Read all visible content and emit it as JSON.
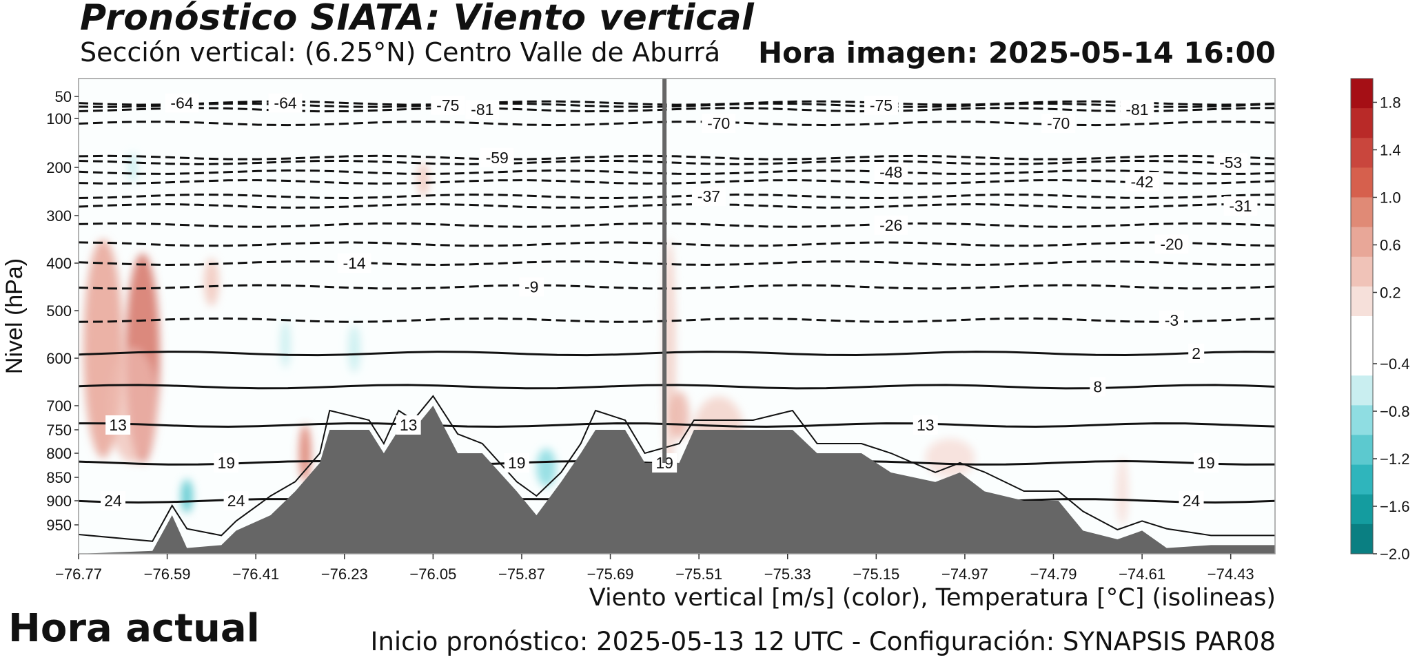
{
  "header": {
    "title": "Pronóstico SIATA: Viento vertical",
    "subtitle": "Sección vertical: (6.25°N) Centro Valle de Aburrá",
    "hora_imagen": "Hora imagen: 2025-05-14 16:00"
  },
  "footer": {
    "caption": "Viento vertical [m/s] (color), Temperatura [°C] (isolineas)",
    "inicio": "Inicio pronóstico: 2025-05-13 12 UTC - Configuración: SYNAPSIS PAR08",
    "hora_actual": "Hora actual"
  },
  "chart_data": {
    "type": "heatmap",
    "ylabel": "Nivel (hPa)",
    "y_scale": "pressure (inverted)",
    "xlim": [
      -76.77,
      -74.34
    ],
    "ylim": [
      1000,
      20
    ],
    "x_ticks": [
      -76.77,
      -76.59,
      -76.41,
      -76.23,
      -76.05,
      -75.87,
      -75.69,
      -75.51,
      -75.33,
      -75.15,
      -74.97,
      -74.79,
      -74.61,
      -74.43
    ],
    "y_ticks": [
      50,
      100,
      200,
      300,
      400,
      500,
      600,
      700,
      750,
      800,
      850,
      900,
      950
    ],
    "grid": false,
    "colorbar": {
      "ticks": [
        1.8,
        1.4,
        1.0,
        0.6,
        0.2,
        -0.4,
        -0.8,
        -1.2,
        -1.6,
        -2.0
      ],
      "range": [
        -2.0,
        2.0
      ],
      "colors_top_to_bottom": [
        "#a50f15",
        "#b92a28",
        "#c9463d",
        "#d6604d",
        "#e08a76",
        "#e8a798",
        "#f0c3b8",
        "#f6e0da",
        "#ffffff",
        "#ffffff",
        "#c9eef0",
        "#8fdde2",
        "#5cc9cf",
        "#2fb5bc",
        "#149c9f",
        "#0a7f82"
      ]
    },
    "current_longitude": -75.58,
    "isotherms": [
      {
        "label": "-64",
        "p": 65
      },
      {
        "label": "-75",
        "p": 70
      },
      {
        "label": "-81",
        "p": 80
      },
      {
        "label": "-70",
        "p": 110
      },
      {
        "label": "-59",
        "p": 180
      },
      {
        "label": "-53",
        "p": 190
      },
      {
        "label": "-48",
        "p": 210
      },
      {
        "label": "-42",
        "p": 230
      },
      {
        "label": "-37",
        "p": 260
      },
      {
        "label": "-31",
        "p": 280
      },
      {
        "label": "-26",
        "p": 320
      },
      {
        "label": "-20",
        "p": 360
      },
      {
        "label": "-14",
        "p": 400
      },
      {
        "label": "-9",
        "p": 450
      },
      {
        "label": "-3",
        "p": 520
      },
      {
        "label": "2",
        "p": 590
      },
      {
        "label": "8",
        "p": 660
      },
      {
        "label": "13",
        "p": 740
      },
      {
        "label": "19",
        "p": 820
      },
      {
        "label": "24",
        "p": 900
      }
    ],
    "terrain_profile_hPa": [
      [
        -76.77,
        1000
      ],
      [
        -76.62,
        995
      ],
      [
        -76.58,
        930
      ],
      [
        -76.55,
        990
      ],
      [
        -76.48,
        985
      ],
      [
        -76.45,
        960
      ],
      [
        -76.38,
        930
      ],
      [
        -76.33,
        880
      ],
      [
        -76.28,
        820
      ],
      [
        -76.26,
        750
      ],
      [
        -76.18,
        750
      ],
      [
        -76.15,
        800
      ],
      [
        -76.12,
        750
      ],
      [
        -76.09,
        750
      ],
      [
        -76.05,
        700
      ],
      [
        -76.0,
        800
      ],
      [
        -75.95,
        800
      ],
      [
        -75.88,
        880
      ],
      [
        -75.84,
        930
      ],
      [
        -75.79,
        860
      ],
      [
        -75.75,
        800
      ],
      [
        -75.72,
        750
      ],
      [
        -75.66,
        750
      ],
      [
        -75.62,
        820
      ],
      [
        -75.55,
        820
      ],
      [
        -75.52,
        750
      ],
      [
        -75.4,
        750
      ],
      [
        -75.32,
        750
      ],
      [
        -75.27,
        800
      ],
      [
        -75.18,
        800
      ],
      [
        -75.12,
        840
      ],
      [
        -75.03,
        860
      ],
      [
        -74.98,
        840
      ],
      [
        -74.93,
        880
      ],
      [
        -74.85,
        900
      ],
      [
        -74.78,
        900
      ],
      [
        -74.73,
        960
      ],
      [
        -74.66,
        975
      ],
      [
        -74.61,
        960
      ],
      [
        -74.56,
        990
      ],
      [
        -74.47,
        985
      ],
      [
        -74.34,
        985
      ]
    ]
  }
}
